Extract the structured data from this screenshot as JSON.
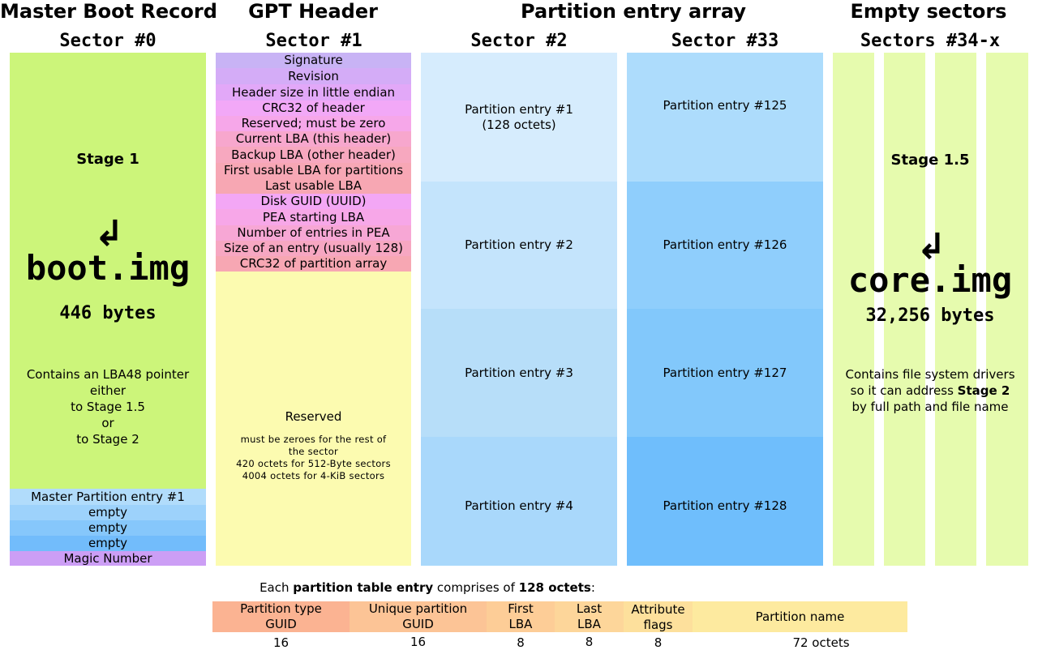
{
  "headers": {
    "mbr": "Master Boot Record",
    "gpt": "GPT Header",
    "pea": "Partition entry array",
    "empty": "Empty sectors"
  },
  "sectors": {
    "s0": "Sector #0",
    "s1": "Sector #1",
    "s2": "Sector #2",
    "s33": "Sector #33",
    "s34": "Sectors #34-x"
  },
  "mbr": {
    "stage": "Stage 1",
    "image": "boot.img",
    "size": "446 bytes",
    "desc": [
      "Contains an LBA48 pointer",
      "either",
      "to Stage 1.5",
      "or",
      "to Stage 2"
    ],
    "entries": [
      "Master Partition entry #1",
      "empty",
      "empty",
      "empty",
      "Magic Number"
    ],
    "colors": [
      "#ccf57a",
      "#b1dcfb",
      "#9dd2fb",
      "#86c7fb",
      "#72bcfb",
      "#cc9ef5"
    ]
  },
  "gpt": {
    "fields": [
      "Signature",
      "Revision",
      "Header size in little endian",
      "CRC32 of header",
      "Reserved; must be zero",
      "Current LBA (this header)",
      "Backup LBA (other header)",
      "First usable LBA for partitions",
      "Last usable LBA",
      "Disk GUID (UUID)",
      "PEA starting LBA",
      "Number of entries in PEA",
      "Size of an entry (usually 128)",
      "CRC32 of partition array"
    ],
    "field_colors": [
      "#c8b3f5",
      "#d4acf7",
      "#e2a8f8",
      "#f2a8f7",
      "#f6a7e9",
      "#f7a7cd",
      "#f7a8bf",
      "#f7a7b5",
      "#f7a7b3",
      "#f3a7f5",
      "#f7a7e8",
      "#f7a7d5",
      "#f7a7c2",
      "#f7a7b3"
    ],
    "reserved_title": "Reserved",
    "reserved_notes": [
      "must be zeroes for the rest of",
      "the sector",
      "420 octets for 512-Byte sectors",
      "4004 octets for 4-KiB sectors"
    ],
    "reserved_color": "#fcfbb0"
  },
  "pea_sector2": {
    "entries": [
      "Partition entry #1",
      "Partition entry #2",
      "Partition entry #3",
      "Partition entry #4"
    ],
    "entry1_sub": "(128 octets)",
    "colors": [
      "#d6ecfd",
      "#c4e4fc",
      "#b7def9",
      "#a9d8fb"
    ]
  },
  "pea_sector33": {
    "entries": [
      "Partition entry #125",
      "Partition entry #126",
      "Partition entry #127",
      "Partition entry #128"
    ],
    "colors": [
      "#addcfc",
      "#8fcefc",
      "#82c8fb",
      "#6fbefc"
    ]
  },
  "empty": {
    "stage": "Stage 1.5",
    "image": "core.img",
    "size": "32,256 bytes",
    "desc": [
      "Contains file system drivers",
      "so it can address ",
      "Stage 2",
      "by full path and file name"
    ],
    "color": "#e6fbae"
  },
  "footer": {
    "caption_pre": "Each ",
    "caption_bold1": "partition table entry",
    "caption_mid": " comprises of ",
    "caption_bold2": "128 octets",
    "caption_post": ":",
    "fields": [
      {
        "label": "Partition type GUID",
        "line1": "Partition type",
        "line2": "GUID",
        "size": "16",
        "color": "#fbb392"
      },
      {
        "label": "Unique partition GUID",
        "line1": "Unique partition",
        "line2": "GUID",
        "size": "16",
        "color": "#fcc496"
      },
      {
        "label": "First LBA",
        "line1": "First",
        "line2": "LBA",
        "size": "8",
        "color": "#fdcd97"
      },
      {
        "label": "Last LBA",
        "line1": "Last",
        "line2": "LBA",
        "size": "8",
        "color": "#fdd69a"
      },
      {
        "label": "Attribute flags",
        "line1": "Attribute",
        "line2": "flags",
        "size": "8",
        "color": "#fde09c"
      },
      {
        "label": "Partition name",
        "line1": "Partition name",
        "line2": "",
        "size": "72 octets",
        "color": "#fdea9f"
      }
    ]
  }
}
